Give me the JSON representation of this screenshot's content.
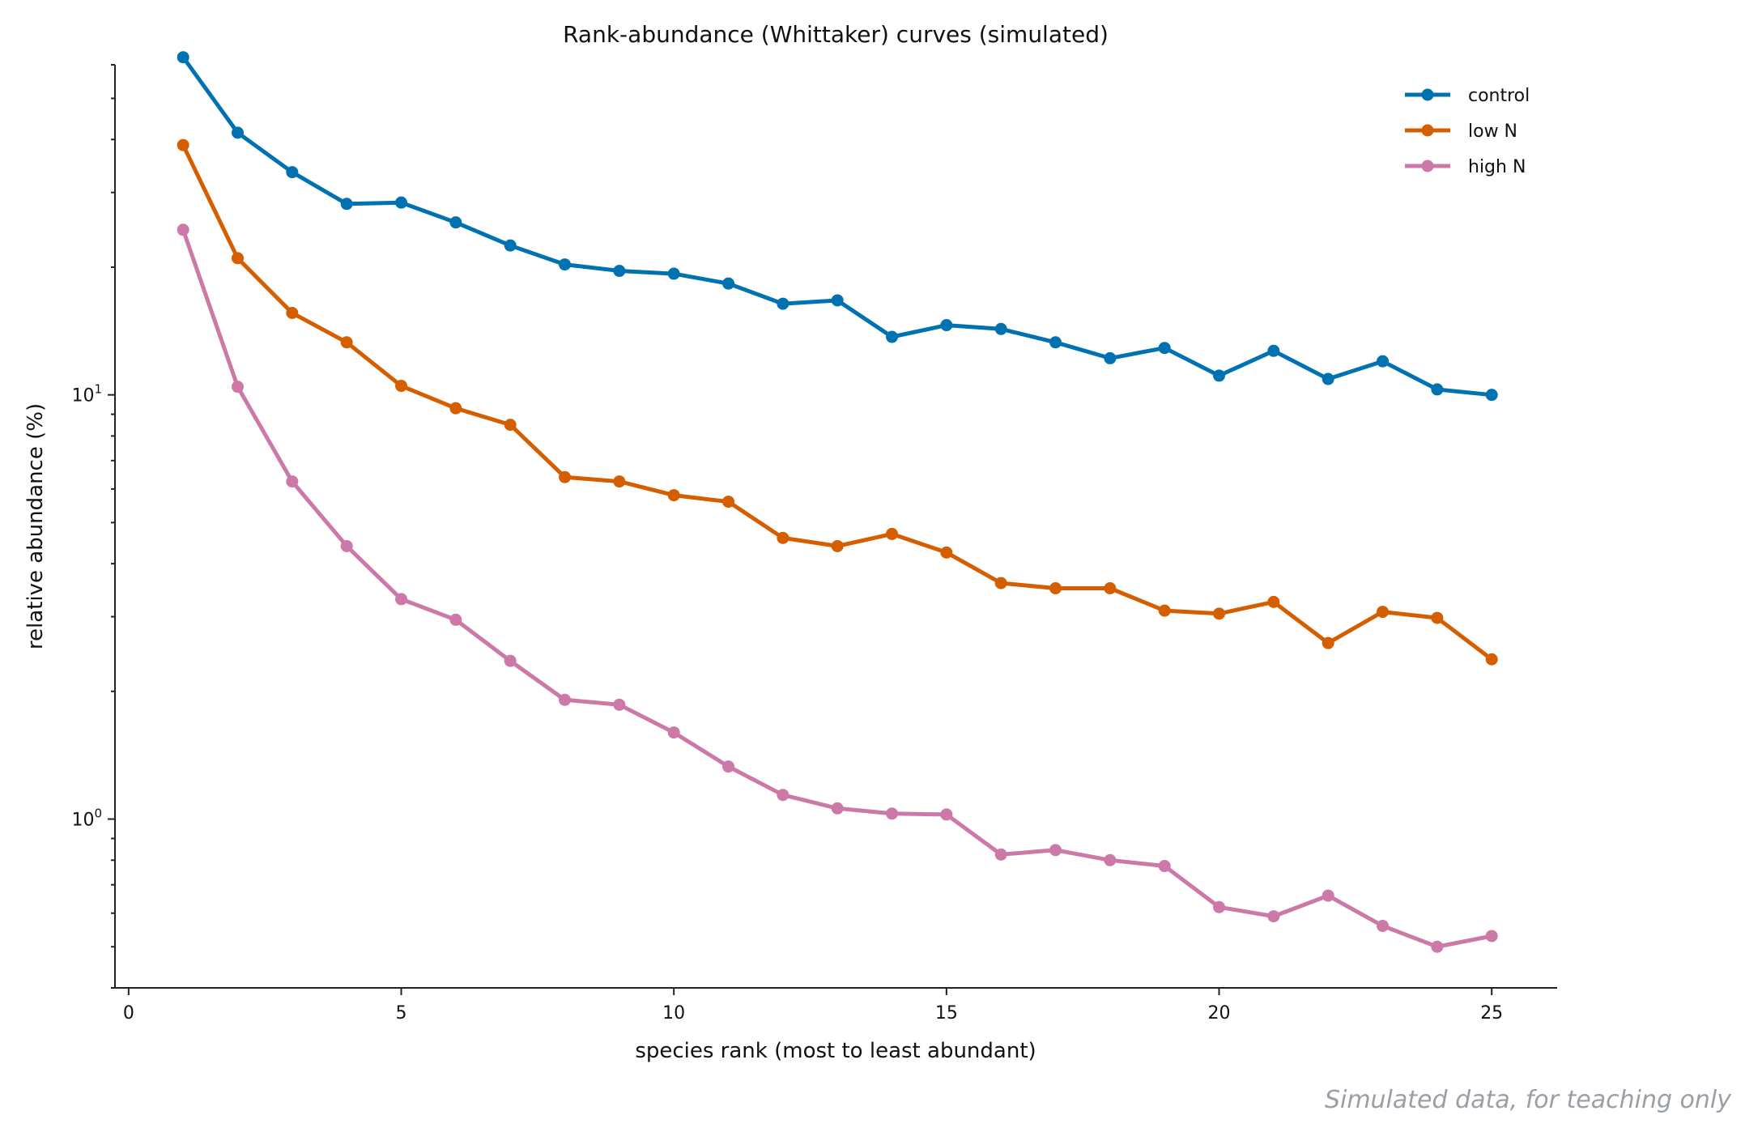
{
  "chart_data": {
    "type": "line",
    "title": "Rank-abundance (Whittaker) curves (simulated)",
    "xlabel": "species rank (most to least abundant)",
    "ylabel": "relative abundance (%)",
    "xlim": [
      -0.25,
      26.2
    ],
    "ylim": [
      0.4,
      60
    ],
    "yscale": "log",
    "x_ticks": [
      0,
      5,
      10,
      15,
      20,
      25
    ],
    "y_ticks": [
      {
        "base": "10",
        "exp": "0",
        "value": 1
      },
      {
        "base": "10",
        "exp": "1",
        "value": 10
      }
    ],
    "grid": false,
    "legend_position": "top-right",
    "x": [
      1,
      2,
      3,
      4,
      5,
      6,
      7,
      8,
      9,
      10,
      11,
      12,
      13,
      14,
      15,
      16,
      17,
      18,
      19,
      20,
      21,
      22,
      23,
      24,
      25
    ],
    "series": [
      {
        "name": "control",
        "color": "#0072b2",
        "values": [
          62.5,
          41.5,
          33.5,
          28.2,
          28.4,
          25.5,
          22.5,
          20.3,
          19.6,
          19.3,
          18.3,
          16.4,
          16.7,
          13.7,
          14.6,
          14.3,
          13.3,
          12.2,
          12.9,
          11.1,
          12.7,
          10.9,
          12.0,
          10.3,
          10.0
        ]
      },
      {
        "name": "low N",
        "color": "#d55e00",
        "values": [
          38.8,
          21.0,
          15.6,
          13.3,
          10.5,
          9.3,
          8.5,
          6.4,
          6.25,
          5.8,
          5.6,
          4.6,
          4.4,
          4.7,
          4.25,
          3.6,
          3.5,
          3.5,
          3.1,
          3.05,
          3.25,
          2.6,
          3.08,
          2.98,
          2.38
        ]
      },
      {
        "name": "high N",
        "color": "#cc79a7",
        "values": [
          24.5,
          10.45,
          6.25,
          4.4,
          3.3,
          2.95,
          2.36,
          1.91,
          1.86,
          1.6,
          1.33,
          1.14,
          1.06,
          1.03,
          1.025,
          0.825,
          0.845,
          0.8,
          0.775,
          0.62,
          0.59,
          0.66,
          0.56,
          0.5,
          0.53
        ]
      }
    ]
  },
  "footnote": "Simulated data, for teaching only"
}
